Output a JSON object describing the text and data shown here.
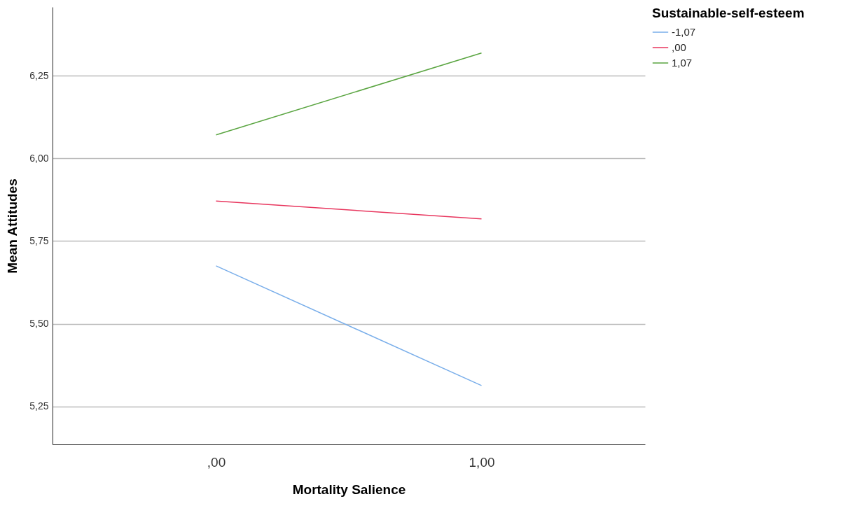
{
  "chart_data": {
    "type": "line",
    "xlabel": "Mortality Salience",
    "ylabel": "Mean Attitudes",
    "legend_title": "Sustainable-self-esteem",
    "categories": [
      ",00",
      "1,00"
    ],
    "series": [
      {
        "name": "-1,07",
        "color": "#79aeea",
        "values": [
          5.675,
          5.313
        ]
      },
      {
        "name": ",00",
        "color": "#e8365e",
        "values": [
          5.871,
          5.817
        ]
      },
      {
        "name": "1,07",
        "color": "#5aa541",
        "values": [
          6.071,
          6.319
        ]
      }
    ],
    "ylim": [
      5.135,
      6.458
    ],
    "yticks": [
      {
        "value": 5.25,
        "label": "5,25"
      },
      {
        "value": 5.5,
        "label": "5,50"
      },
      {
        "value": 5.75,
        "label": "5,75"
      },
      {
        "value": 6.0,
        "label": "6,00"
      },
      {
        "value": 6.25,
        "label": "6,25"
      }
    ],
    "grid": "y",
    "legend": "top right",
    "marker": "none",
    "line_style": "solid"
  }
}
